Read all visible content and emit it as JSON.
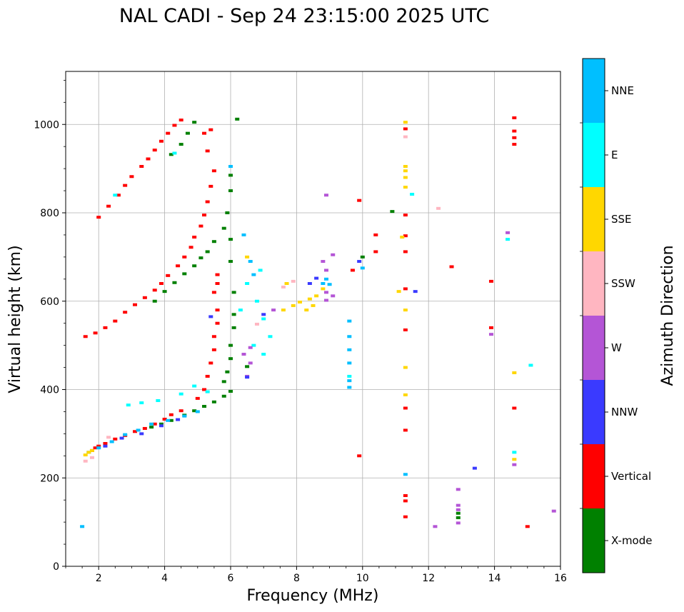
{
  "chart_data": {
    "type": "scatter",
    "title": "NAL CADI - Sep 24 23:15:00 2025 UTC",
    "xlabel": "Frequency (MHz)",
    "ylabel": "Virtual height (km)",
    "xlim": [
      1,
      16
    ],
    "ylim": [
      0,
      1120
    ],
    "x_ticks": [
      2,
      4,
      6,
      8,
      10,
      12,
      14,
      16
    ],
    "y_ticks": [
      0,
      200,
      400,
      600,
      800,
      1000
    ],
    "grid": true,
    "colorbar": {
      "title": "Azimuth Direction",
      "categories": [
        {
          "name": "NNE",
          "color": "#00bfff"
        },
        {
          "name": "E",
          "color": "#00ffff"
        },
        {
          "name": "SSE",
          "color": "#ffd700"
        },
        {
          "name": "SSW",
          "color": "#ffb6c1"
        },
        {
          "name": "W",
          "color": "#b455d6"
        },
        {
          "name": "NNW",
          "color": "#3a3aff"
        },
        {
          "name": "Vertical",
          "color": "#ff0000"
        },
        {
          "name": "X-mode",
          "color": "#008000"
        }
      ]
    },
    "series": [
      {
        "name": "Vertical",
        "color": "#ff0000",
        "points": [
          [
            1.8,
            262
          ],
          [
            1.9,
            268
          ],
          [
            2.0,
            272
          ],
          [
            2.2,
            278
          ],
          [
            2.5,
            288
          ],
          [
            2.8,
            296
          ],
          [
            3.1,
            305
          ],
          [
            3.4,
            312
          ],
          [
            3.7,
            322
          ],
          [
            4.0,
            333
          ],
          [
            4.2,
            343
          ],
          [
            4.5,
            352
          ],
          [
            1.6,
            520
          ],
          [
            1.9,
            528
          ],
          [
            2.2,
            540
          ],
          [
            2.5,
            555
          ],
          [
            2.8,
            575
          ],
          [
            3.1,
            592
          ],
          [
            3.4,
            608
          ],
          [
            3.7,
            625
          ],
          [
            3.9,
            640
          ],
          [
            4.1,
            658
          ],
          [
            4.4,
            680
          ],
          [
            4.6,
            700
          ],
          [
            4.8,
            722
          ],
          [
            4.9,
            745
          ],
          [
            5.1,
            770
          ],
          [
            5.2,
            795
          ],
          [
            5.3,
            825
          ],
          [
            5.4,
            860
          ],
          [
            5.5,
            895
          ],
          [
            2.0,
            790
          ],
          [
            2.3,
            815
          ],
          [
            2.6,
            840
          ],
          [
            2.8,
            862
          ],
          [
            3.0,
            882
          ],
          [
            3.3,
            905
          ],
          [
            3.5,
            922
          ],
          [
            3.7,
            942
          ],
          [
            3.9,
            962
          ],
          [
            4.1,
            980
          ],
          [
            4.3,
            998
          ],
          [
            4.5,
            1010
          ],
          [
            5.0,
            380
          ],
          [
            5.2,
            400
          ],
          [
            5.3,
            430
          ],
          [
            5.4,
            460
          ],
          [
            5.5,
            490
          ],
          [
            5.5,
            520
          ],
          [
            5.6,
            550
          ],
          [
            5.6,
            580
          ],
          [
            5.5,
            620
          ],
          [
            5.6,
            640
          ],
          [
            5.6,
            660
          ],
          [
            5.2,
            980
          ],
          [
            5.4,
            988
          ],
          [
            5.3,
            940
          ],
          [
            9.9,
            828
          ],
          [
            9.7,
            670
          ],
          [
            10.4,
            750
          ],
          [
            10.4,
            712
          ],
          [
            11.3,
            990
          ],
          [
            11.3,
            795
          ],
          [
            11.3,
            748
          ],
          [
            11.3,
            712
          ],
          [
            11.3,
            628
          ],
          [
            11.3,
            535
          ],
          [
            11.3,
            358
          ],
          [
            11.3,
            308
          ],
          [
            11.3,
            160
          ],
          [
            11.3,
            148
          ],
          [
            11.3,
            112
          ],
          [
            12.7,
            678
          ],
          [
            13.9,
            645
          ],
          [
            13.9,
            540
          ],
          [
            14.6,
            1015
          ],
          [
            14.6,
            985
          ],
          [
            14.6,
            970
          ],
          [
            14.6,
            955
          ],
          [
            14.6,
            358
          ],
          [
            15.0,
            90
          ],
          [
            9.9,
            250
          ]
        ]
      },
      {
        "name": "X-mode",
        "color": "#008000",
        "points": [
          [
            3.6,
            315
          ],
          [
            3.9,
            322
          ],
          [
            4.2,
            330
          ],
          [
            4.6,
            342
          ],
          [
            4.9,
            352
          ],
          [
            5.2,
            362
          ],
          [
            5.5,
            372
          ],
          [
            5.8,
            385
          ],
          [
            6.0,
            396
          ],
          [
            3.7,
            600
          ],
          [
            4.0,
            622
          ],
          [
            4.3,
            642
          ],
          [
            4.6,
            662
          ],
          [
            4.9,
            680
          ],
          [
            5.1,
            698
          ],
          [
            5.3,
            712
          ],
          [
            5.5,
            735
          ],
          [
            5.8,
            765
          ],
          [
            5.9,
            800
          ],
          [
            4.2,
            932
          ],
          [
            4.5,
            955
          ],
          [
            4.7,
            980
          ],
          [
            4.9,
            1005
          ],
          [
            5.8,
            418
          ],
          [
            5.9,
            440
          ],
          [
            6.0,
            470
          ],
          [
            6.0,
            500
          ],
          [
            6.1,
            540
          ],
          [
            6.1,
            570
          ],
          [
            6.1,
            620
          ],
          [
            6.0,
            690
          ],
          [
            6.0,
            740
          ],
          [
            6.0,
            850
          ],
          [
            6.0,
            885
          ],
          [
            6.2,
            1012
          ],
          [
            6.5,
            452
          ],
          [
            10.0,
            700
          ],
          [
            10.9,
            803
          ],
          [
            12.9,
            120
          ],
          [
            12.9,
            110
          ]
        ]
      },
      {
        "name": "NNE",
        "color": "#00bfff",
        "points": [
          [
            1.7,
            258
          ],
          [
            2.0,
            268
          ],
          [
            2.4,
            282
          ],
          [
            2.8,
            298
          ],
          [
            3.2,
            308
          ],
          [
            3.6,
            322
          ],
          [
            4.1,
            330
          ],
          [
            4.6,
            340
          ],
          [
            5.0,
            350
          ],
          [
            6.4,
            750
          ],
          [
            6.6,
            690
          ],
          [
            6.7,
            660
          ],
          [
            8.9,
            650
          ],
          [
            8.8,
            640
          ],
          [
            9.0,
            638
          ],
          [
            9.6,
            555
          ],
          [
            9.6,
            520
          ],
          [
            9.6,
            490
          ],
          [
            9.6,
            460
          ],
          [
            9.6,
            420
          ],
          [
            9.6,
            405
          ],
          [
            10.0,
            675
          ],
          [
            11.3,
            208
          ],
          [
            6.0,
            905
          ],
          [
            1.5,
            90
          ]
        ]
      },
      {
        "name": "E",
        "color": "#00ffff",
        "points": [
          [
            2.9,
            365
          ],
          [
            3.3,
            370
          ],
          [
            3.8,
            375
          ],
          [
            4.5,
            390
          ],
          [
            4.9,
            408
          ],
          [
            5.3,
            395
          ],
          [
            6.5,
            640
          ],
          [
            6.8,
            600
          ],
          [
            6.9,
            670
          ],
          [
            7.0,
            560
          ],
          [
            7.2,
            520
          ],
          [
            7.0,
            480
          ],
          [
            6.3,
            580
          ],
          [
            6.7,
            500
          ],
          [
            9.6,
            430
          ],
          [
            11.5,
            842
          ],
          [
            14.4,
            740
          ],
          [
            14.6,
            258
          ],
          [
            15.1,
            455
          ],
          [
            4.3,
            935
          ],
          [
            2.5,
            840
          ]
        ]
      },
      {
        "name": "SSE",
        "color": "#ffd700",
        "points": [
          [
            1.6,
            252
          ],
          [
            1.7,
            258
          ],
          [
            1.8,
            262
          ],
          [
            7.6,
            580
          ],
          [
            7.9,
            590
          ],
          [
            8.1,
            598
          ],
          [
            8.4,
            605
          ],
          [
            8.6,
            612
          ],
          [
            8.8,
            628
          ],
          [
            7.7,
            640
          ],
          [
            8.3,
            580
          ],
          [
            8.5,
            590
          ],
          [
            11.3,
            1005
          ],
          [
            11.3,
            905
          ],
          [
            11.3,
            895
          ],
          [
            11.3,
            880
          ],
          [
            11.3,
            858
          ],
          [
            11.2,
            745
          ],
          [
            11.1,
            622
          ],
          [
            11.3,
            580
          ],
          [
            11.3,
            450
          ],
          [
            11.3,
            388
          ],
          [
            14.6,
            438
          ],
          [
            14.6,
            242
          ],
          [
            6.5,
            700
          ]
        ]
      },
      {
        "name": "SSW",
        "color": "#ffb6c1",
        "points": [
          [
            1.6,
            238
          ],
          [
            1.8,
            246
          ],
          [
            2.3,
            292
          ],
          [
            7.6,
            632
          ],
          [
            7.9,
            645
          ],
          [
            11.3,
            972
          ],
          [
            12.3,
            810
          ],
          [
            6.8,
            548
          ]
        ]
      },
      {
        "name": "W",
        "color": "#b455d6",
        "points": [
          [
            8.9,
            840
          ],
          [
            9.1,
            705
          ],
          [
            8.8,
            690
          ],
          [
            8.9,
            670
          ],
          [
            8.9,
            620
          ],
          [
            9.1,
            612
          ],
          [
            8.9,
            602
          ],
          [
            6.6,
            495
          ],
          [
            6.4,
            480
          ],
          [
            6.6,
            460
          ],
          [
            6.5,
            430
          ],
          [
            7.3,
            580
          ],
          [
            12.9,
            138
          ],
          [
            12.9,
            128
          ],
          [
            12.9,
            98
          ],
          [
            12.9,
            174
          ],
          [
            14.4,
            755
          ],
          [
            13.9,
            525
          ],
          [
            14.6,
            230
          ],
          [
            15.8,
            125
          ],
          [
            12.2,
            90
          ]
        ]
      },
      {
        "name": "NNW",
        "color": "#3a3aff",
        "points": [
          [
            2.2,
            272
          ],
          [
            2.7,
            290
          ],
          [
            3.3,
            300
          ],
          [
            3.9,
            318
          ],
          [
            4.4,
            332
          ],
          [
            5.4,
            565
          ],
          [
            6.5,
            428
          ],
          [
            7.0,
            570
          ],
          [
            8.4,
            640
          ],
          [
            8.6,
            652
          ],
          [
            11.6,
            622
          ],
          [
            13.4,
            222
          ],
          [
            9.9,
            690
          ]
        ]
      }
    ]
  }
}
